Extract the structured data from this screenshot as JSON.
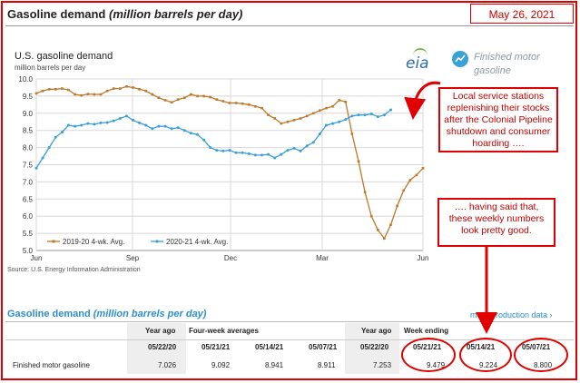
{
  "page": {
    "title_main": "Gasoline demand",
    "title_sub": "(million barrels per day)",
    "date": "May 26, 2021"
  },
  "side_panel": {
    "label": "Finished motor gasoline"
  },
  "logo": "eia",
  "source": "Source: U.S. Energy Information Administration",
  "annotations": {
    "box1": "Local service stations replenishing their stocks after the Colonial Pipeline shutdown and consumer hoarding ….",
    "box2": "…. having said that, these weekly numbers look pretty good."
  },
  "chart_data": {
    "type": "line",
    "title": "U.S. gasoline demand",
    "ylabel": "million barrels per day",
    "xlabel": "",
    "ylim": [
      5.0,
      10.0
    ],
    "y_ticks": [
      "5.0",
      "5.5",
      "6.0",
      "6.5",
      "7.0",
      "7.5",
      "8.0",
      "8.5",
      "9.0",
      "9.5",
      "10.0"
    ],
    "x_ticks": [
      "Jun",
      "Sep",
      "Dec",
      "Mar",
      "Jun"
    ],
    "grid": true,
    "legend_position": "bottom-left",
    "series": [
      {
        "name": "2019-20  4-wk. Avg.",
        "color": "#c0782a",
        "values": [
          9.58,
          9.65,
          9.7,
          9.7,
          9.72,
          9.68,
          9.55,
          9.52,
          9.56,
          9.55,
          9.55,
          9.65,
          9.72,
          9.72,
          9.78,
          9.75,
          9.7,
          9.65,
          9.55,
          9.45,
          9.38,
          9.32,
          9.4,
          9.45,
          9.55,
          9.5,
          9.5,
          9.47,
          9.4,
          9.35,
          9.3,
          9.3,
          9.28,
          9.25,
          9.2,
          9.15,
          8.95,
          8.85,
          8.7,
          8.75,
          8.8,
          8.85,
          8.92,
          9.0,
          9.08,
          9.15,
          9.2,
          9.38,
          9.33,
          8.4,
          7.6,
          6.7,
          6.0,
          5.6,
          5.35,
          5.75,
          6.3,
          6.75,
          7.05,
          7.2,
          7.4
        ]
      },
      {
        "name": "2020-21  4-wk. Avg.",
        "color": "#3aa0d8",
        "values": [
          7.4,
          7.7,
          8.0,
          8.3,
          8.45,
          8.65,
          8.62,
          8.65,
          8.7,
          8.68,
          8.72,
          8.73,
          8.78,
          8.85,
          8.92,
          8.8,
          8.72,
          8.65,
          8.55,
          8.62,
          8.62,
          8.55,
          8.58,
          8.5,
          8.42,
          8.38,
          8.22,
          8.0,
          7.92,
          7.9,
          7.92,
          7.85,
          7.85,
          7.82,
          7.78,
          7.78,
          7.8,
          7.7,
          7.8,
          7.92,
          7.98,
          7.9,
          8.05,
          8.15,
          8.4,
          8.65,
          8.7,
          8.75,
          8.82,
          8.92,
          8.95,
          8.95,
          8.98,
          8.9,
          8.95,
          9.1
        ]
      }
    ]
  },
  "table": {
    "title_main": "Gasoline demand",
    "title_sub": "(million barrels per day)",
    "more_link": "more production data ›",
    "group_headers": {
      "year_ago_1": "Year ago",
      "four_week": "Four-week averages",
      "year_ago_2": "Year ago",
      "week_ending": "Week ending"
    },
    "date_headers": [
      "05/22/20",
      "05/21/21",
      "05/14/21",
      "05/07/21",
      "05/22/20",
      "05/21/21",
      "05/14/21",
      "05/07/21"
    ],
    "rows": [
      {
        "label": "Finished motor gasoline",
        "values": [
          "7.026",
          "9.092",
          "8.941",
          "8.911",
          "7.253",
          "9.479",
          "9.224",
          "8.800"
        ]
      }
    ]
  }
}
